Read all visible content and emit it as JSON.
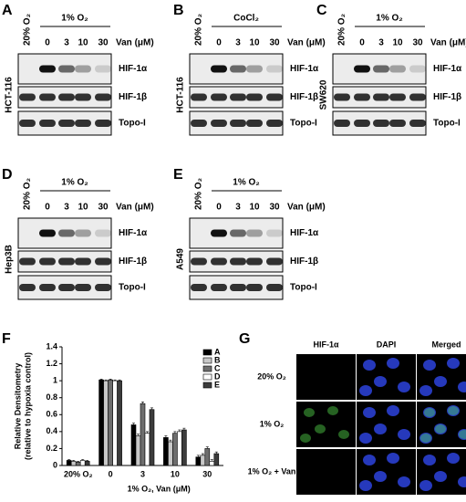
{
  "blots": [
    {
      "letter": "A",
      "control": "20% O₂",
      "treatment": "1% O₂",
      "lanes": [
        "0",
        "3",
        "10",
        "30"
      ],
      "dose_label": "Van (μM)",
      "cell_line": "HCT-116",
      "bands": [
        "HIF-1α",
        "HIF-1β",
        "Topo-I"
      ]
    },
    {
      "letter": "B",
      "control": "20% O₂",
      "treatment": "CoCl₂",
      "lanes": [
        "0",
        "3",
        "10",
        "30"
      ],
      "dose_label": "Van (μM)",
      "cell_line": "HCT-116",
      "bands": [
        "HIF-1α",
        "HIF-1β",
        "Topo-I"
      ]
    },
    {
      "letter": "C",
      "control": "20% O₂",
      "treatment": "1% O₂",
      "lanes": [
        "0",
        "3",
        "10",
        "30"
      ],
      "dose_label": "Van (μM)",
      "cell_line": "SW620",
      "bands": [
        "HIF-1α",
        "HIF-1β",
        "Topo-I"
      ]
    },
    {
      "letter": "D",
      "control": "20% O₂",
      "treatment": "1% O₂",
      "lanes": [
        "0",
        "3",
        "10",
        "30"
      ],
      "dose_label": "Van (μM)",
      "cell_line": "Hep3B",
      "bands": [
        "HIF-1α",
        "HIF-1β",
        "Topo-I"
      ]
    },
    {
      "letter": "E",
      "control": "20% O₂",
      "treatment": "1% O₂",
      "lanes": [
        "0",
        "3",
        "10",
        "30"
      ],
      "dose_label": "Van (μM)",
      "cell_line": "A549",
      "bands": [
        "HIF-1α",
        "HIF-1β",
        "Topo-I"
      ]
    }
  ],
  "chart_data": {
    "type": "bar",
    "panel_label": "F",
    "y_label": [
      "Relative Densitometry",
      "(relative to hypoxia control)"
    ],
    "x_label": "1% O₂, Van (μM)",
    "categories": [
      "20% O₂",
      "0",
      "3",
      "10",
      "30"
    ],
    "series": [
      {
        "name": "A",
        "color": "#000000",
        "values": [
          0.06,
          1.01,
          0.48,
          0.33,
          0.1
        ],
        "errors": [
          0.01,
          0.01,
          0.02,
          0.02,
          0.02
        ]
      },
      {
        "name": "B",
        "color": "#c8c8c8",
        "values": [
          0.05,
          1.0,
          0.35,
          0.28,
          0.12
        ],
        "errors": [
          0.01,
          0.01,
          0.02,
          0.02,
          0.02
        ]
      },
      {
        "name": "C",
        "color": "#6e6e6e",
        "values": [
          0.04,
          1.01,
          0.73,
          0.38,
          0.2
        ],
        "errors": [
          0.01,
          0.01,
          0.02,
          0.02,
          0.02
        ]
      },
      {
        "name": "D",
        "color": "#ffffff",
        "values": [
          0.06,
          1.0,
          0.38,
          0.4,
          0.05
        ],
        "errors": [
          0.01,
          0.01,
          0.02,
          0.02,
          0.02
        ]
      },
      {
        "name": "E",
        "color": "#3c3c3c",
        "values": [
          0.05,
          1.0,
          0.66,
          0.42,
          0.14
        ],
        "errors": [
          0.01,
          0.01,
          0.02,
          0.02,
          0.02
        ]
      }
    ],
    "ylim": [
      0,
      1.4
    ],
    "yticks": [
      0,
      0.2,
      0.4,
      0.6,
      0.8,
      1,
      1.2,
      1.4
    ],
    "legend": "upper right"
  },
  "microscopy": {
    "letter": "G",
    "columns": [
      "HIF-1α",
      "DAPI",
      "Merged"
    ],
    "rows": [
      "20% O₂",
      "1% O₂",
      "1% O₂ + Van"
    ]
  }
}
